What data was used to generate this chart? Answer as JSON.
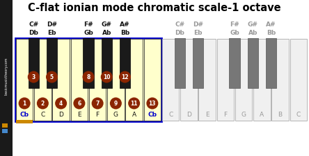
{
  "title": "C-flat ionian mode chromatic scale-1 octave",
  "background_color": "#ffffff",
  "sidebar_bg": "#1a1a1a",
  "sidebar_text": "basicmusictheory.com",
  "sidebar_orange": "#cc8800",
  "sidebar_blue": "#4488cc",
  "highlight_bg": "#ffffcc",
  "highlight_border": "#0000cc",
  "white_key_color": "#f0f0f0",
  "white_key_highlight": "#ffffcc",
  "black_key_color": "#1a1a1a",
  "gray_white_color": "#cccccc",
  "gray_black_color": "#777777",
  "circle_color": "#8B2500",
  "circle_text_color": "#ffffff",
  "blue_text": "#0000cc",
  "black_text": "#111111",
  "gray_text": "#999999",
  "white_notes_left": [
    "Cb",
    "C",
    "D",
    "E",
    "F",
    "G",
    "A",
    "Cb"
  ],
  "white_notes_right": [
    "C",
    "D",
    "E",
    "F",
    "G",
    "A",
    "B",
    "C"
  ],
  "white_numbers": [
    1,
    2,
    4,
    6,
    7,
    9,
    11,
    13
  ],
  "black_numbers": [
    3,
    5,
    8,
    10,
    12
  ],
  "black_key_positions": [
    1,
    2,
    4,
    5,
    6
  ],
  "sharp_line1": [
    "C#",
    "D#",
    "F#",
    "G#",
    "A#"
  ],
  "sharp_line2": [
    "Db",
    "Eb",
    "Gb",
    "Ab",
    "Bb"
  ]
}
